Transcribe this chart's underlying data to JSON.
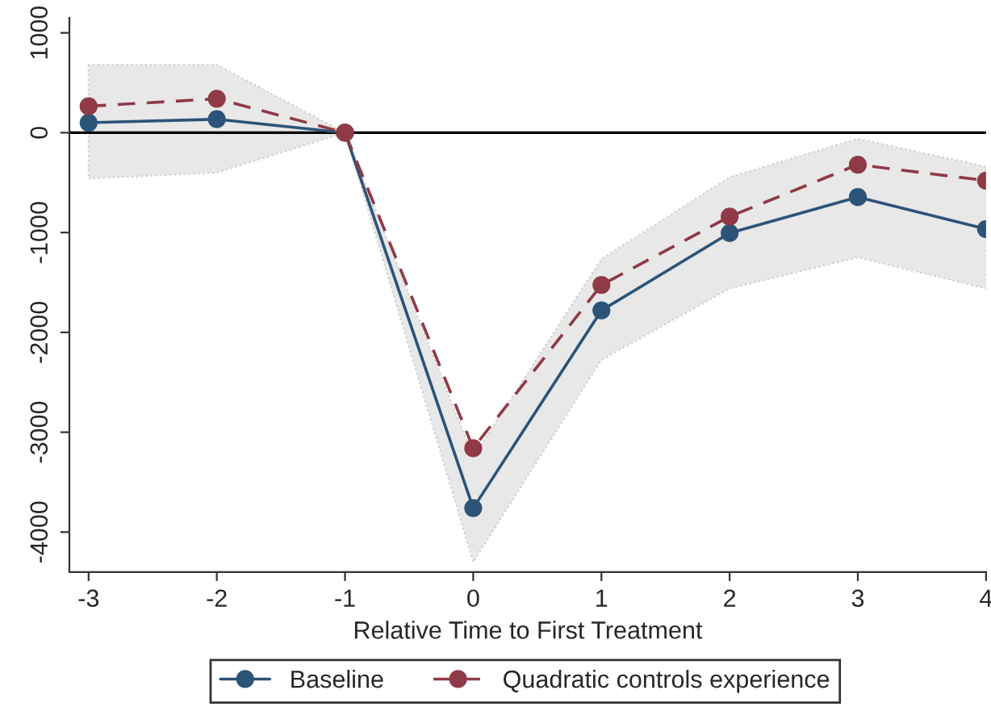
{
  "chart_data": {
    "type": "line",
    "xlabel": "Relative Time to First Treatment",
    "x": [
      -3,
      -2,
      -1,
      0,
      1,
      2,
      3,
      4
    ],
    "xlim": [
      -3.15,
      4
    ],
    "xticks": [
      -3,
      -2,
      -1,
      0,
      1,
      2,
      3,
      4
    ],
    "ylim": [
      -4400,
      1150
    ],
    "yticks": [
      1000,
      0,
      -1000,
      -2000,
      -3000,
      -4000
    ],
    "series": [
      {
        "name": "Baseline",
        "color": "#2c5378",
        "line_style": "solid",
        "values": [
          100,
          135,
          0,
          -3760,
          -1780,
          -1005,
          -645,
          -965
        ],
        "lower": [
          -460,
          -400,
          0,
          -4300,
          -2275,
          -1560,
          -1250,
          -1560
        ],
        "upper": [
          680,
          680,
          0,
          -3250,
          -1265,
          -445,
          -60,
          -340
        ]
      },
      {
        "name": "Quadratic controls experience",
        "color": "#8f3a46",
        "line_style": "dashed",
        "values": [
          265,
          340,
          0,
          -3160,
          -1525,
          -840,
          -320,
          -480
        ]
      }
    ],
    "ref_lines": [
      {
        "axis": "y",
        "value": 0,
        "color": "#000000"
      }
    ],
    "marker": "circle",
    "grid": false,
    "legend": "bottom"
  }
}
